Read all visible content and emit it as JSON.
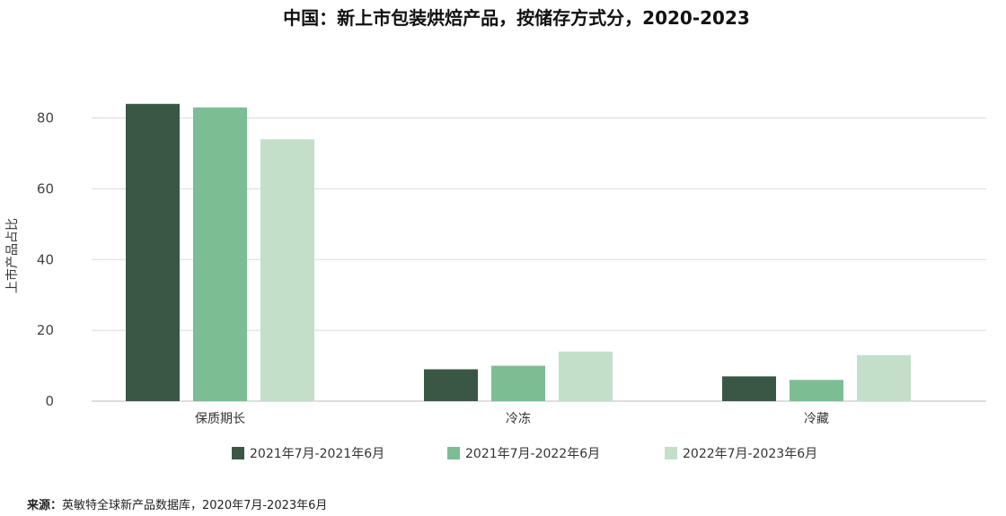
{
  "chart_data": {
    "type": "bar",
    "title": "中国：新上市包装烘焙产品，按储存方式分，2020-2023",
    "xlabel": "",
    "ylabel": "上市产品占比",
    "categories": [
      "保质期长",
      "冷冻",
      "冷藏"
    ],
    "series": [
      {
        "name": "2021年7月-2021年6月",
        "values": [
          84,
          9,
          7
        ],
        "color": "#3a5745"
      },
      {
        "name": "2021年7月-2022年6月",
        "values": [
          83,
          10,
          6
        ],
        "color": "#7dbd93"
      },
      {
        "name": "2022年7月-2023年6月",
        "values": [
          74,
          14,
          13
        ],
        "color": "#c3dfca"
      }
    ],
    "ylim": [
      0,
      88
    ],
    "yticks": [
      0,
      20,
      40,
      60,
      80
    ],
    "grid": true,
    "legend_position": "bottom"
  },
  "source": {
    "prefix": "来源：",
    "text": "英敏特全球新产品数据库，2020年7月-2023年6月"
  }
}
